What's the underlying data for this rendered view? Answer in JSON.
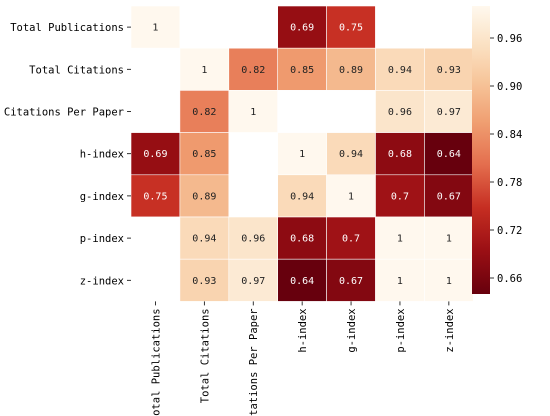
{
  "chart_data": {
    "type": "heatmap",
    "title": "",
    "xlabel": "",
    "ylabel": "",
    "rows": [
      "Total Publications",
      "Total Citations",
      "Citations Per Paper",
      "h-index",
      "g-index",
      "p-index",
      "z-index"
    ],
    "cols": [
      "Total Publications",
      "Total Citations",
      "Citations Per Paper",
      "h-index",
      "g-index",
      "p-index",
      "z-index"
    ],
    "values": [
      [
        1,
        null,
        null,
        0.69,
        0.75,
        null,
        null
      ],
      [
        null,
        1,
        0.82,
        0.85,
        0.89,
        0.94,
        0.93
      ],
      [
        null,
        0.82,
        1,
        null,
        null,
        0.96,
        0.97
      ],
      [
        0.69,
        0.85,
        null,
        1,
        0.94,
        0.68,
        0.64
      ],
      [
        0.75,
        0.89,
        null,
        0.94,
        1,
        0.7,
        0.67
      ],
      [
        null,
        0.94,
        0.96,
        0.68,
        0.7,
        1,
        1
      ],
      [
        null,
        0.93,
        0.97,
        0.64,
        0.67,
        1,
        1
      ]
    ],
    "colorbar": {
      "min": 0.64,
      "max": 1.0,
      "ticks": [
        0.66,
        0.72,
        0.78,
        0.84,
        0.9,
        0.96
      ],
      "tick_labels": [
        "0.66",
        "0.72",
        "0.78",
        "0.84",
        "0.90",
        "0.96"
      ],
      "colormap": "OrRd (reversed)"
    },
    "grid": true,
    "legend": "right colorbar"
  }
}
